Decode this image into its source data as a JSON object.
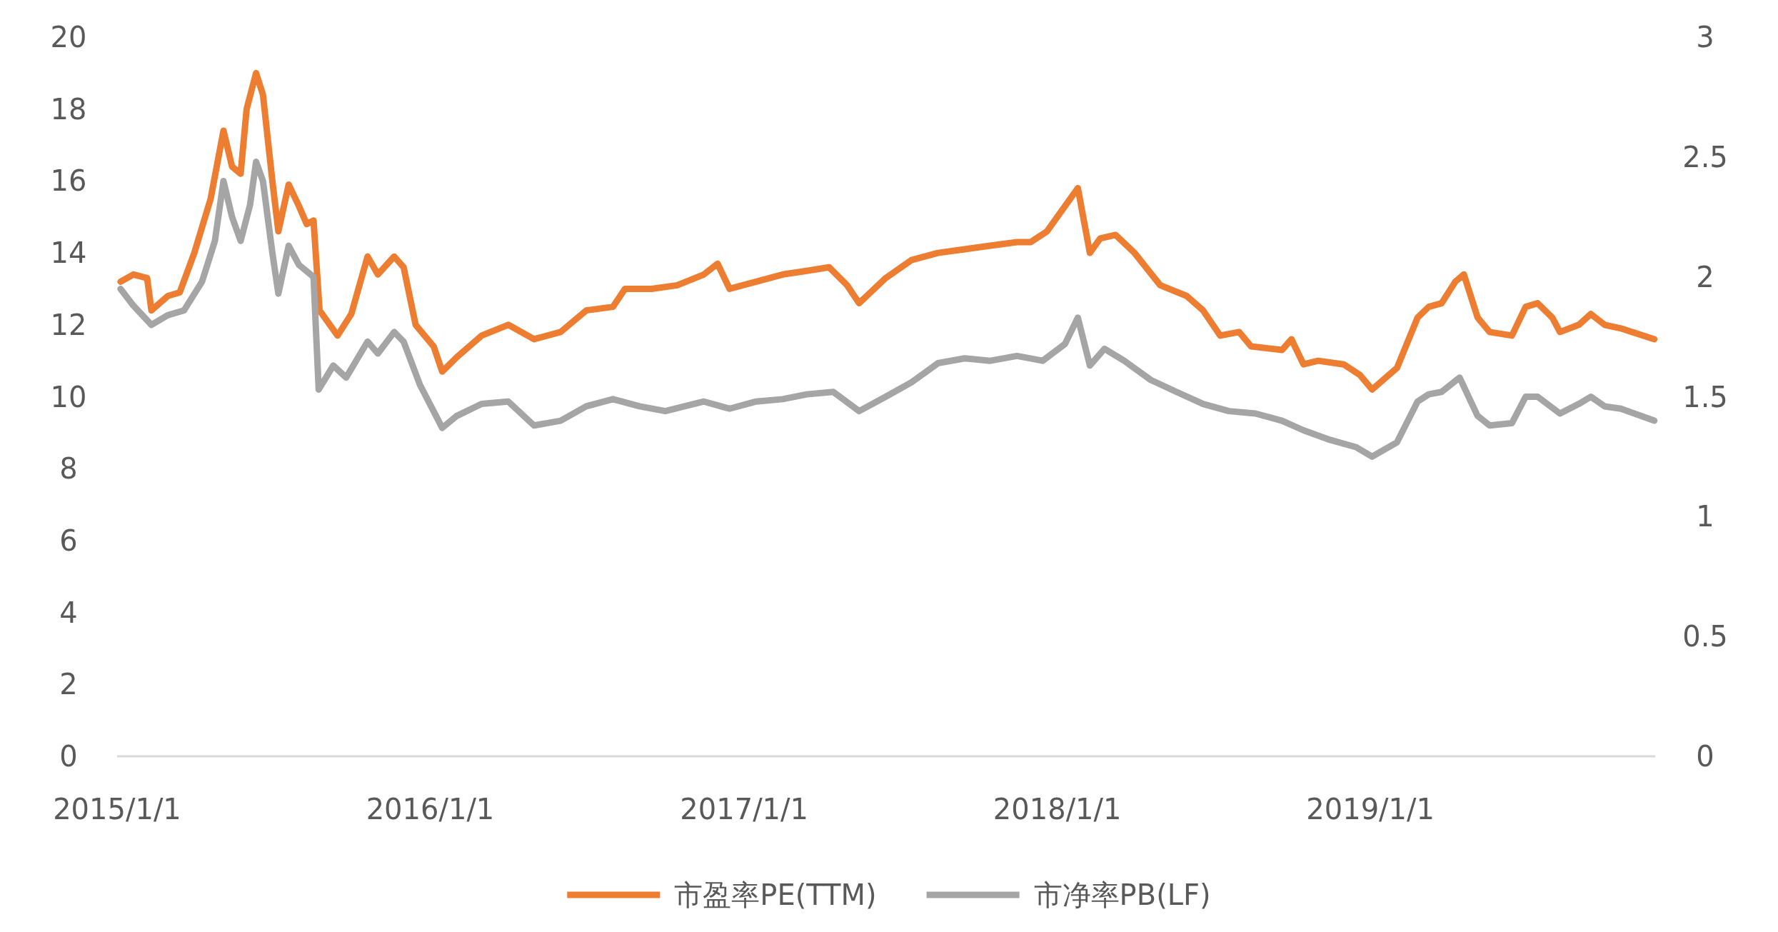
{
  "chart_data": {
    "type": "line",
    "xlim": [
      "2015-01-01",
      "2019-11-29"
    ],
    "xticks": [
      {
        "value": "2015-01-01",
        "label": "2015/1/1"
      },
      {
        "value": "2016-01-01",
        "label": "2016/1/1"
      },
      {
        "value": "2017-01-01",
        "label": "2017/1/1"
      },
      {
        "value": "2018-01-01",
        "label": "2018/1/1"
      },
      {
        "value": "2019-01-01",
        "label": "2019/1/1"
      }
    ],
    "ylim": [
      0,
      20
    ],
    "yticks": [
      0,
      2,
      4,
      6,
      8,
      10,
      12,
      14,
      16,
      18,
      20
    ],
    "y2lim": [
      0,
      3
    ],
    "y2ticks": [
      0,
      0.5,
      1,
      1.5,
      2,
      2.5,
      3
    ],
    "grid": false,
    "legend": "bottom",
    "series": [
      {
        "name": "市盈率PE(TTM)",
        "color": "#ed7d31",
        "x": [
          "2015-01-05",
          "2015-01-20",
          "2015-02-05",
          "2015-02-10",
          "2015-03-01",
          "2015-03-15",
          "2015-04-01",
          "2015-04-20",
          "2015-05-05",
          "2015-05-15",
          "2015-05-25",
          "2015-06-01",
          "2015-06-12",
          "2015-06-20",
          "2015-07-01",
          "2015-07-08",
          "2015-07-20",
          "2015-08-01",
          "2015-08-10",
          "2015-08-18",
          "2015-08-25",
          "2015-09-15",
          "2015-10-01",
          "2015-10-20",
          "2015-11-01",
          "2015-11-20",
          "2015-12-01",
          "2015-12-15",
          "2016-01-05",
          "2016-01-15",
          "2016-02-01",
          "2016-03-01",
          "2016-04-01",
          "2016-05-01",
          "2016-06-01",
          "2016-07-01",
          "2016-08-01",
          "2016-08-15",
          "2016-09-15",
          "2016-10-15",
          "2016-11-15",
          "2016-12-01",
          "2016-12-15",
          "2017-01-15",
          "2017-02-15",
          "2017-03-15",
          "2017-04-10",
          "2017-05-01",
          "2017-05-15",
          "2017-06-15",
          "2017-07-15",
          "2017-08-15",
          "2017-09-15",
          "2017-10-15",
          "2017-11-15",
          "2017-12-01",
          "2017-12-20",
          "2018-01-10",
          "2018-01-25",
          "2018-02-08",
          "2018-02-20",
          "2018-03-10",
          "2018-04-01",
          "2018-05-01",
          "2018-06-01",
          "2018-06-20",
          "2018-07-10",
          "2018-08-01",
          "2018-08-15",
          "2018-09-20",
          "2018-10-01",
          "2018-10-15",
          "2018-11-01",
          "2018-12-01",
          "2018-12-20",
          "2019-01-03",
          "2019-02-01",
          "2019-02-25",
          "2019-03-10",
          "2019-03-25",
          "2019-04-10",
          "2019-04-20",
          "2019-05-06",
          "2019-05-20",
          "2019-06-15",
          "2019-07-01",
          "2019-07-15",
          "2019-08-01",
          "2019-08-10",
          "2019-09-01",
          "2019-09-15",
          "2019-10-01",
          "2019-10-20",
          "2019-11-28"
        ],
        "values": [
          13.2,
          13.4,
          13.3,
          12.4,
          12.8,
          12.9,
          14,
          15.5,
          17.4,
          16.4,
          16.2,
          18,
          19,
          18.4,
          16,
          14.6,
          15.9,
          15.3,
          14.8,
          14.9,
          12.4,
          11.7,
          12.3,
          13.9,
          13.4,
          13.9,
          13.6,
          12,
          11.4,
          10.7,
          11.1,
          11.7,
          12,
          11.6,
          11.8,
          12.4,
          12.5,
          13,
          13,
          13.1,
          13.4,
          13.7,
          13,
          13.2,
          13.4,
          13.5,
          13.6,
          13.1,
          12.6,
          13.3,
          13.8,
          14,
          14.1,
          14.2,
          14.3,
          14.3,
          14.6,
          15.3,
          15.8,
          14,
          14.4,
          14.5,
          14,
          13.1,
          12.8,
          12.4,
          11.7,
          11.8,
          11.4,
          11.3,
          11.6,
          10.9,
          11,
          10.9,
          10.6,
          10.2,
          10.8,
          12.2,
          12.5,
          12.6,
          13.2,
          13.4,
          12.2,
          11.8,
          11.7,
          12.5,
          12.6,
          12.2,
          11.8,
          12,
          12.3,
          12,
          11.9,
          11.6
        ]
      },
      {
        "name": "市净率PB(LF)",
        "color": "#a5a5a5",
        "axis": "y2",
        "x": [
          "2015-01-05",
          "2015-01-20",
          "2015-02-10",
          "2015-03-01",
          "2015-03-20",
          "2015-04-10",
          "2015-04-25",
          "2015-05-05",
          "2015-05-15",
          "2015-05-25",
          "2015-06-05",
          "2015-06-12",
          "2015-06-20",
          "2015-07-01",
          "2015-07-08",
          "2015-07-20",
          "2015-08-01",
          "2015-08-18",
          "2015-08-24",
          "2015-09-10",
          "2015-09-25",
          "2015-10-20",
          "2015-11-01",
          "2015-11-20",
          "2015-12-01",
          "2015-12-20",
          "2016-01-15",
          "2016-02-01",
          "2016-03-01",
          "2016-04-01",
          "2016-05-01",
          "2016-06-01",
          "2016-07-01",
          "2016-08-01",
          "2016-09-01",
          "2016-10-01",
          "2016-11-15",
          "2016-12-15",
          "2017-01-15",
          "2017-02-15",
          "2017-03-15",
          "2017-04-15",
          "2017-05-15",
          "2017-06-15",
          "2017-07-15",
          "2017-08-15",
          "2017-09-15",
          "2017-10-15",
          "2017-11-15",
          "2017-12-15",
          "2018-01-10",
          "2018-01-25",
          "2018-02-08",
          "2018-02-25",
          "2018-03-20",
          "2018-04-20",
          "2018-05-20",
          "2018-06-20",
          "2018-07-20",
          "2018-08-20",
          "2018-09-20",
          "2018-10-15",
          "2018-11-15",
          "2018-12-15",
          "2019-01-03",
          "2019-02-01",
          "2019-02-25",
          "2019-03-10",
          "2019-03-25",
          "2019-04-15",
          "2019-05-06",
          "2019-05-20",
          "2019-06-15",
          "2019-07-01",
          "2019-07-15",
          "2019-08-10",
          "2019-09-01",
          "2019-09-15",
          "2019-10-01",
          "2019-10-20",
          "2019-11-28"
        ],
        "values": [
          1.95,
          1.88,
          1.8,
          1.84,
          1.86,
          1.98,
          2.15,
          2.4,
          2.25,
          2.15,
          2.3,
          2.48,
          2.4,
          2.1,
          1.93,
          2.13,
          2.05,
          2,
          1.53,
          1.63,
          1.58,
          1.73,
          1.68,
          1.77,
          1.73,
          1.55,
          1.37,
          1.42,
          1.47,
          1.48,
          1.38,
          1.4,
          1.46,
          1.49,
          1.46,
          1.44,
          1.48,
          1.45,
          1.48,
          1.49,
          1.51,
          1.52,
          1.44,
          1.5,
          1.56,
          1.64,
          1.66,
          1.65,
          1.67,
          1.65,
          1.72,
          1.83,
          1.63,
          1.7,
          1.65,
          1.57,
          1.52,
          1.47,
          1.44,
          1.43,
          1.4,
          1.36,
          1.32,
          1.29,
          1.25,
          1.31,
          1.48,
          1.51,
          1.52,
          1.58,
          1.42,
          1.38,
          1.39,
          1.5,
          1.5,
          1.43,
          1.47,
          1.5,
          1.46,
          1.45,
          1.4
        ]
      }
    ]
  }
}
